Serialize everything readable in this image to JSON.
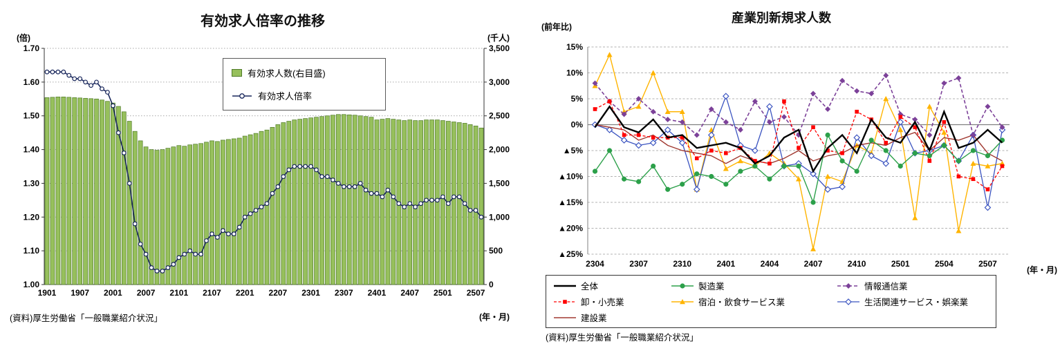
{
  "page": {
    "background": "#FFFFFF"
  },
  "chart_data": [
    {
      "id": "effective-jobs-ratio",
      "type": "bar+line",
      "title": "有効求人倍率の推移",
      "source": "(資料)厚生労働省「一般職業紹介状況」",
      "xlabel": "(年・月)",
      "left_axis": {
        "label": "(倍)",
        "min": 1.0,
        "max": 1.7,
        "step": 0.1
      },
      "right_axis": {
        "label": "(千人)",
        "min": 0,
        "max": 3500,
        "step": 500
      },
      "x": [
        "1901",
        "1902",
        "1903",
        "1904",
        "1905",
        "1906",
        "1907",
        "1908",
        "1909",
        "1910",
        "1911",
        "1912",
        "2001",
        "2002",
        "2003",
        "2004",
        "2005",
        "2006",
        "2007",
        "2008",
        "2009",
        "2010",
        "2011",
        "2012",
        "2101",
        "2102",
        "2103",
        "2104",
        "2105",
        "2106",
        "2107",
        "2108",
        "2109",
        "2110",
        "2111",
        "2112",
        "2201",
        "2202",
        "2203",
        "2204",
        "2205",
        "2206",
        "2207",
        "2208",
        "2209",
        "2210",
        "2211",
        "2212",
        "2301",
        "2302",
        "2303",
        "2304",
        "2305",
        "2306",
        "2307",
        "2308",
        "2309",
        "2310",
        "2311",
        "2312",
        "2401",
        "2402",
        "2403",
        "2404",
        "2405",
        "2406",
        "2407",
        "2408",
        "2409",
        "2410",
        "2411",
        "2412",
        "2501",
        "2502",
        "2503",
        "2504",
        "2505",
        "2506",
        "2507",
        "2508"
      ],
      "x_ticks": [
        "1901",
        "1907",
        "2001",
        "2007",
        "2101",
        "2107",
        "2201",
        "2207",
        "2301",
        "2307",
        "2401",
        "2407",
        "2501",
        "2507"
      ],
      "series": [
        {
          "name": "有効求人数(右目盛)",
          "type": "bar",
          "axis": "right",
          "color": "#97C05C",
          "border": "#4E7A27",
          "values": [
            2770,
            2775,
            2780,
            2780,
            2775,
            2770,
            2765,
            2760,
            2755,
            2750,
            2735,
            2715,
            2690,
            2640,
            2560,
            2420,
            2270,
            2130,
            2040,
            2000,
            1990,
            2000,
            2020,
            2040,
            2060,
            2050,
            2070,
            2080,
            2090,
            2110,
            2130,
            2120,
            2140,
            2150,
            2160,
            2170,
            2200,
            2220,
            2240,
            2270,
            2290,
            2330,
            2370,
            2400,
            2420,
            2440,
            2450,
            2460,
            2470,
            2480,
            2490,
            2500,
            2510,
            2520,
            2520,
            2515,
            2510,
            2500,
            2490,
            2480,
            2440,
            2450,
            2460,
            2450,
            2440,
            2430,
            2440,
            2430,
            2430,
            2440,
            2440,
            2440,
            2430,
            2420,
            2410,
            2400,
            2390,
            2370,
            2350,
            2320
          ]
        },
        {
          "name": "有効求人倍率",
          "type": "line",
          "axis": "left",
          "color": "#17255A",
          "marker": "circle-open",
          "values": [
            1.63,
            1.63,
            1.63,
            1.63,
            1.62,
            1.61,
            1.61,
            1.6,
            1.59,
            1.6,
            1.58,
            1.57,
            1.53,
            1.45,
            1.39,
            1.3,
            1.18,
            1.12,
            1.09,
            1.05,
            1.04,
            1.04,
            1.05,
            1.06,
            1.08,
            1.09,
            1.1,
            1.09,
            1.09,
            1.13,
            1.15,
            1.14,
            1.16,
            1.15,
            1.15,
            1.17,
            1.2,
            1.21,
            1.22,
            1.23,
            1.24,
            1.27,
            1.29,
            1.32,
            1.34,
            1.35,
            1.35,
            1.35,
            1.35,
            1.34,
            1.32,
            1.32,
            1.31,
            1.3,
            1.29,
            1.29,
            1.29,
            1.3,
            1.28,
            1.27,
            1.27,
            1.26,
            1.28,
            1.26,
            1.24,
            1.23,
            1.24,
            1.23,
            1.24,
            1.25,
            1.25,
            1.25,
            1.26,
            1.24,
            1.26,
            1.26,
            1.24,
            1.22,
            1.22,
            1.2
          ]
        }
      ]
    },
    {
      "id": "new-jobs-by-industry",
      "type": "line",
      "title": "産業別新規求人数",
      "y_unit": "(前年比)",
      "source": "(資料)厚生労働省「一般職業紹介状況」",
      "xlabel": "(年・月)",
      "y_axis": {
        "min": -25,
        "max": 15,
        "step": 5,
        "negative_prefix": "▲",
        "suffix": "%"
      },
      "x": [
        "2304",
        "2305",
        "2306",
        "2307",
        "2308",
        "2309",
        "2310",
        "2311",
        "2312",
        "2401",
        "2402",
        "2403",
        "2404",
        "2405",
        "2406",
        "2407",
        "2408",
        "2409",
        "2410",
        "2411",
        "2412",
        "2501",
        "2502",
        "2503",
        "2504",
        "2505",
        "2506",
        "2507",
        "2508"
      ],
      "x_ticks": [
        "2304",
        "2307",
        "2310",
        "2401",
        "2404",
        "2407",
        "2410",
        "2501",
        "2504",
        "2507"
      ],
      "series": [
        {
          "name": "全体",
          "color": "#000000",
          "width": 2.4,
          "dash": "",
          "marker": "none",
          "values": [
            -0.5,
            3.5,
            -0.5,
            -1.5,
            1,
            -2.5,
            -2,
            -4.5,
            -4,
            -3.5,
            -4.5,
            -7.5,
            -6,
            -2.5,
            -1,
            -9,
            -4.5,
            -2,
            -5.5,
            1,
            -2.5,
            -3.5,
            0.5,
            -5,
            2.5,
            -4.5,
            -3.5,
            -1,
            -3.5
          ]
        },
        {
          "name": "製造業",
          "color": "#2CA04A",
          "width": 1.4,
          "dash": "",
          "marker": "circle",
          "values": [
            -9,
            -5,
            -10.5,
            -11,
            -8,
            -12.5,
            -11.5,
            -9.5,
            -10,
            -11.5,
            -9,
            -8,
            -10.5,
            -8,
            -8,
            -15,
            -2,
            -7,
            -9,
            -3,
            -5,
            -8,
            -5.5,
            -6,
            -4,
            -7,
            -5,
            -6,
            -3
          ]
        },
        {
          "name": "情報通信業",
          "color": "#7C4199",
          "width": 1.6,
          "dash": "5 3",
          "marker": "diamond",
          "values": [
            8,
            4.5,
            2,
            5,
            2.5,
            1,
            0.5,
            -2,
            3,
            0.5,
            -1,
            4.5,
            0.5,
            1.5,
            -2,
            6,
            3,
            8.5,
            6.5,
            6,
            9.5,
            2,
            1,
            -2,
            8,
            9,
            -2,
            3.5,
            -0.5
          ]
        },
        {
          "name": "卸・小売業",
          "color": "#FF0000",
          "width": 1.3,
          "dash": "4 2.5",
          "marker": "square",
          "values": [
            3,
            4.5,
            -2,
            -2,
            -2.5,
            -2.5,
            -2.5,
            -6.5,
            -5,
            -5.5,
            -4.5,
            -7,
            -7.5,
            4.5,
            -4.5,
            -0.5,
            -5,
            -5.5,
            2.5,
            1,
            -3.5,
            1.5,
            -0.5,
            -7,
            0.5,
            -10,
            -10.5,
            -12.5,
            -8
          ]
        },
        {
          "name": "宿泊・飲食サービス業",
          "color": "#FFB400",
          "width": 1.4,
          "dash": "",
          "marker": "triangle",
          "values": [
            7.5,
            13.5,
            2.5,
            3.5,
            10,
            2.5,
            2.5,
            -12.5,
            -1,
            -8.5,
            -7,
            -8,
            -5.5,
            -7.5,
            -10.5,
            -24,
            -10,
            -11,
            -4,
            -5.5,
            5,
            -1,
            -18,
            3.5,
            -1.5,
            -20.5,
            -7.5,
            -8,
            -7.5
          ]
        },
        {
          "name": "生活関連サービス・娯楽業",
          "color": "#3A53C0",
          "width": 1.3,
          "dash": "",
          "marker": "diamond-open",
          "values": [
            0,
            -1,
            -3,
            -4,
            -3.5,
            -1,
            -3.5,
            -12.5,
            -2,
            5.5,
            -4,
            -5,
            3.5,
            -8,
            -7.5,
            -9.5,
            -12.5,
            -12,
            -2.5,
            -6,
            -7.5,
            0.5,
            -5.5,
            -5,
            -4,
            -7,
            -2,
            -16,
            -1
          ]
        },
        {
          "name": "建設業",
          "color": "#A03830",
          "width": 1.4,
          "dash": "",
          "marker": "none",
          "values": [
            0,
            -0.5,
            -1,
            -3,
            -2,
            -4,
            -5,
            -5.5,
            -6,
            -7.5,
            -6,
            -7,
            -7.5,
            -6.5,
            -5,
            -7,
            -6,
            -5.5,
            -4,
            -3.5,
            -4,
            -2.5,
            -1.5,
            -5,
            -2.5,
            -3,
            -2,
            -5.5,
            -7
          ]
        }
      ]
    }
  ]
}
